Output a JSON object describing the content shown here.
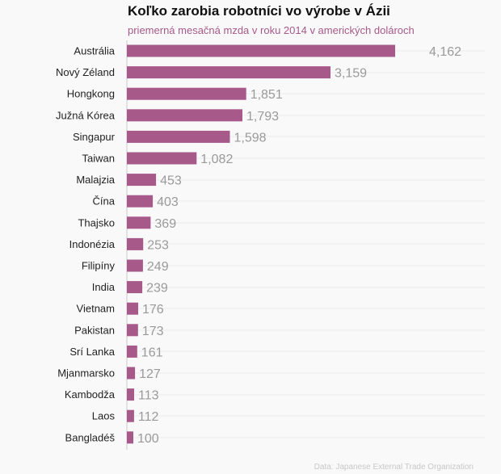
{
  "title": "Koľko zarobia robotníci vo výrobe v Ázii",
  "subtitle": "priemerná mesačná mzda v roku 2014 v amerických dolároch",
  "source": "Data: Japanese External Trade Organization",
  "colors": {
    "bar": "#a7598a",
    "subtitle": "#a7598a",
    "value_label": "#9a9a9a",
    "background": "#f9f9f9",
    "grid": "#ececec"
  },
  "chart_data": {
    "type": "bar",
    "orientation": "horizontal",
    "categories": [
      "Austrália",
      "Nový Zéland",
      "Hongkong",
      "Južná Kórea",
      "Singapur",
      "Taiwan",
      "Malajzia",
      "Čína",
      "Thajsko",
      "Indonézia",
      "Filipíny",
      "India",
      "Vietnam",
      "Pakistan",
      "Srí Lanka",
      "Mjanmarsko",
      "Kambodža",
      "Laos",
      "Bangladéš"
    ],
    "values": [
      4162,
      3159,
      1851,
      1793,
      1598,
      1082,
      453,
      403,
      369,
      253,
      249,
      239,
      176,
      173,
      161,
      127,
      113,
      112,
      100
    ],
    "value_labels": [
      "4,162",
      "3,159",
      "1,851",
      "1,793",
      "1,598",
      "1,082",
      "453",
      "403",
      "369",
      "253",
      "249",
      "239",
      "176",
      "173",
      "161",
      "127",
      "113",
      "112",
      "100"
    ],
    "title": "Koľko zarobia robotníci vo výrobe v Ázii",
    "subtitle": "priemerná mesačná mzda v roku 2014 v amerických dolároch",
    "xlabel": "",
    "ylabel": "",
    "xlim": [
      0,
      4162
    ],
    "grid": true
  }
}
